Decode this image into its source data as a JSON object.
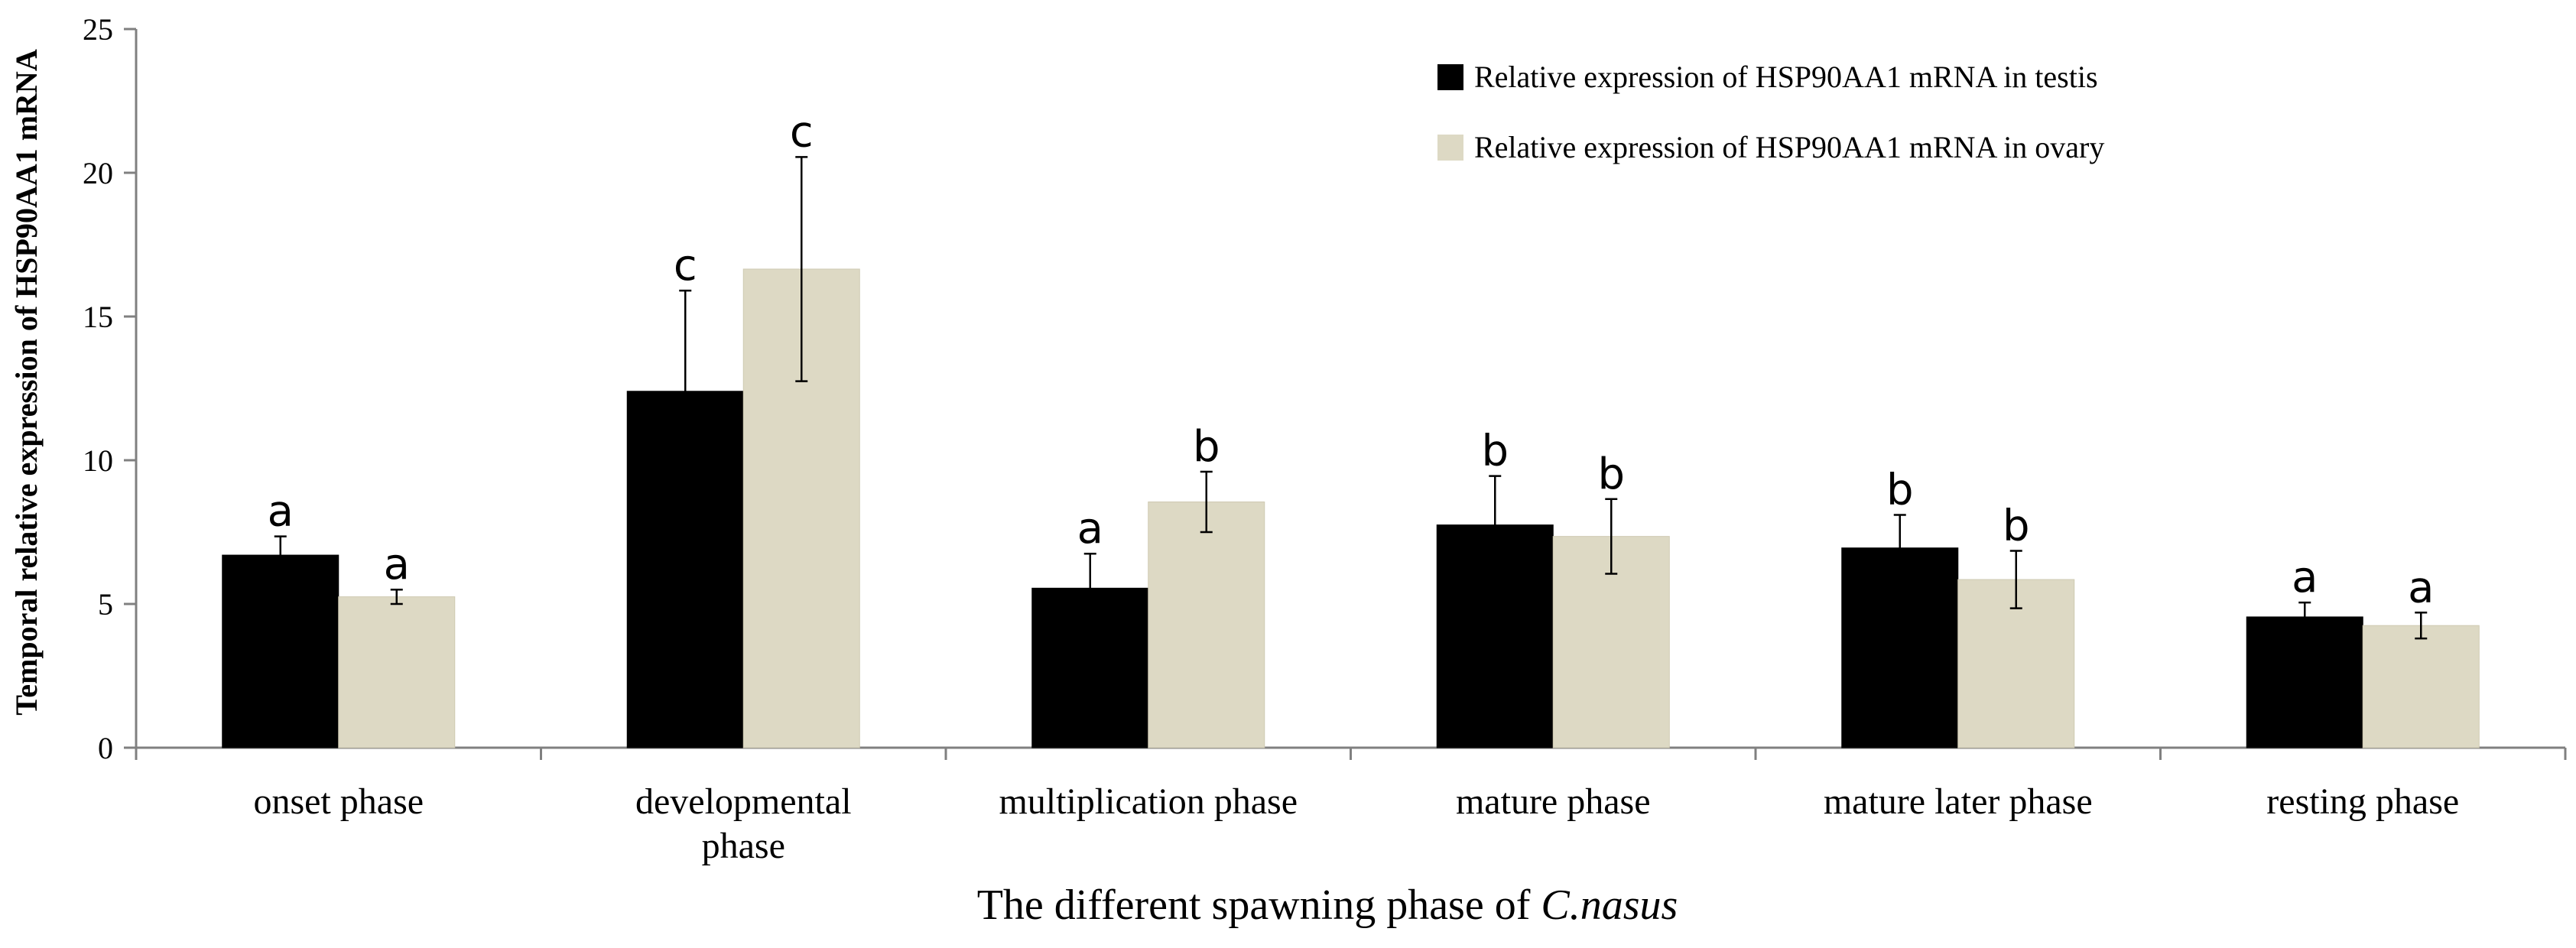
{
  "chart_data": {
    "type": "bar",
    "title": "",
    "xlabel": "The  different spawning phase of",
    "xlabel_species": "C.nasus",
    "ylabel": "Temporal relative expression of HSP90AA1 mRNA",
    "ylim": [
      0,
      25
    ],
    "yticks": [
      0,
      5,
      10,
      15,
      20,
      25
    ],
    "grid": false,
    "legend_position": "top-right",
    "categories": [
      [
        "onset phase"
      ],
      [
        "developmental",
        "phase"
      ],
      [
        "multiplication phase"
      ],
      [
        "mature phase"
      ],
      [
        "mature later phase"
      ],
      [
        "resting phase"
      ]
    ],
    "series": [
      {
        "name": "Relative expression of HSP90AA1 mRNA in testis",
        "color": "#000000",
        "values": [
          6.7,
          12.4,
          5.55,
          7.75,
          6.95,
          4.55
        ],
        "errors": [
          0.65,
          3.5,
          1.2,
          1.7,
          1.15,
          0.5
        ],
        "letters": [
          "a",
          "c",
          "a",
          "b",
          "b",
          "a"
        ]
      },
      {
        "name": "Relative expression of HSP90AA1 mRNA in ovary",
        "color": "#ddd9c4",
        "values": [
          5.25,
          16.65,
          8.55,
          7.35,
          5.85,
          4.25
        ],
        "errors": [
          0.25,
          3.9,
          1.05,
          1.3,
          1.0,
          0.45
        ],
        "letters": [
          "a",
          "c",
          "b",
          "b",
          "b",
          "a"
        ]
      }
    ]
  }
}
